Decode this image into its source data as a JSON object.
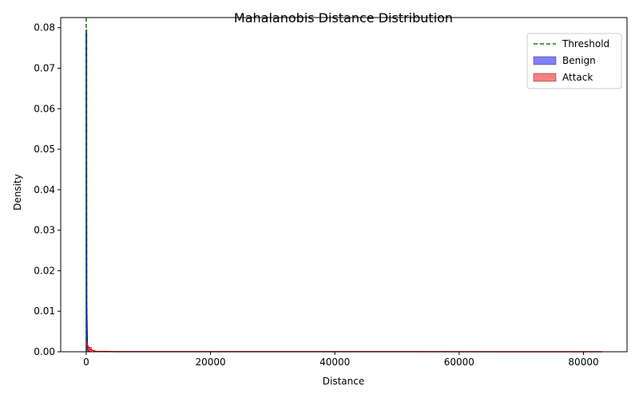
{
  "chart_data": {
    "type": "histogram",
    "title": "Mahalanobis Distance Distribution",
    "xlabel": "Distance",
    "ylabel": "Density",
    "xlim": [
      -4100,
      87000
    ],
    "ylim": [
      0,
      0.0825
    ],
    "x_ticks": [
      {
        "value": 0,
        "label": "0"
      },
      {
        "value": 20000,
        "label": "20000"
      },
      {
        "value": 40000,
        "label": "40000"
      },
      {
        "value": 60000,
        "label": "60000"
      },
      {
        "value": 80000,
        "label": "80000"
      }
    ],
    "y_ticks": [
      {
        "value": 0,
        "label": "0.00"
      },
      {
        "value": 0.01,
        "label": "0.01"
      },
      {
        "value": 0.02,
        "label": "0.02"
      },
      {
        "value": 0.03,
        "label": "0.03"
      },
      {
        "value": 0.04,
        "label": "0.04"
      },
      {
        "value": 0.05,
        "label": "0.05"
      },
      {
        "value": 0.06,
        "label": "0.06"
      },
      {
        "value": 0.07,
        "label": "0.07"
      },
      {
        "value": 0.08,
        "label": "0.08"
      }
    ],
    "threshold": {
      "name": "Threshold",
      "x": 0,
      "color": "#008000",
      "style": "dashed"
    },
    "series": [
      {
        "name": "Benign",
        "color": "#0000ff",
        "bins": [
          {
            "x0": -60,
            "x1": 60,
            "density": 0.0795
          }
        ],
        "kde": [
          [
            0,
            0.079
          ],
          [
            80,
            0.012
          ],
          [
            200,
            0.0006
          ],
          [
            500,
            0
          ]
        ]
      },
      {
        "name": "Attack",
        "color": "#ff0000",
        "bins": [
          {
            "x0": 0,
            "x1": 850,
            "density": 0.0011
          },
          {
            "x0": 850,
            "x1": 83000,
            "density": 3e-05
          }
        ],
        "kde": [
          [
            0,
            0.0028
          ],
          [
            200,
            0.0016
          ],
          [
            600,
            0.0006
          ],
          [
            1500,
            0.0001
          ],
          [
            5000,
            2e-05
          ],
          [
            83000,
            1e-05
          ]
        ]
      }
    ],
    "legend": {
      "position": "top-right",
      "entries": [
        {
          "label": "Threshold",
          "kind": "line",
          "color": "#008000"
        },
        {
          "label": "Benign",
          "kind": "patch",
          "color": "#0000ff"
        },
        {
          "label": "Attack",
          "kind": "patch",
          "color": "#ff0000"
        }
      ]
    },
    "grid": false
  }
}
